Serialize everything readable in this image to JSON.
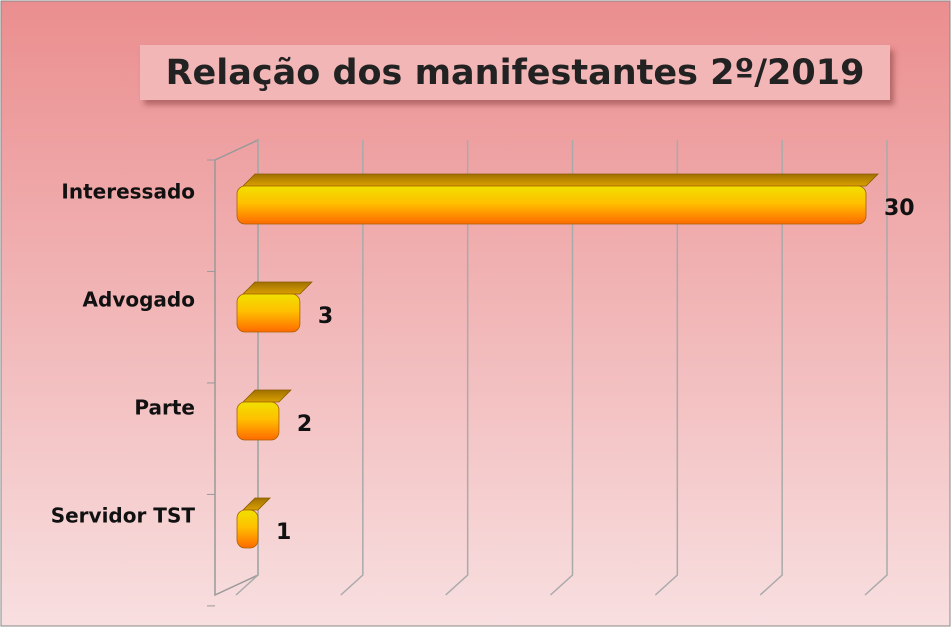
{
  "chart_data": {
    "type": "bar",
    "orientation": "horizontal",
    "title": "Relação dos manifestantes 2º/2019",
    "categories": [
      "Interessado",
      "Advogado",
      "Parte",
      "Servidor TST"
    ],
    "values": [
      30,
      3,
      2,
      1
    ],
    "color": "#ff9a00",
    "xlim": [
      0,
      30
    ],
    "xticks": [
      0,
      5,
      10,
      15,
      20,
      25,
      30
    ],
    "grid": true
  }
}
